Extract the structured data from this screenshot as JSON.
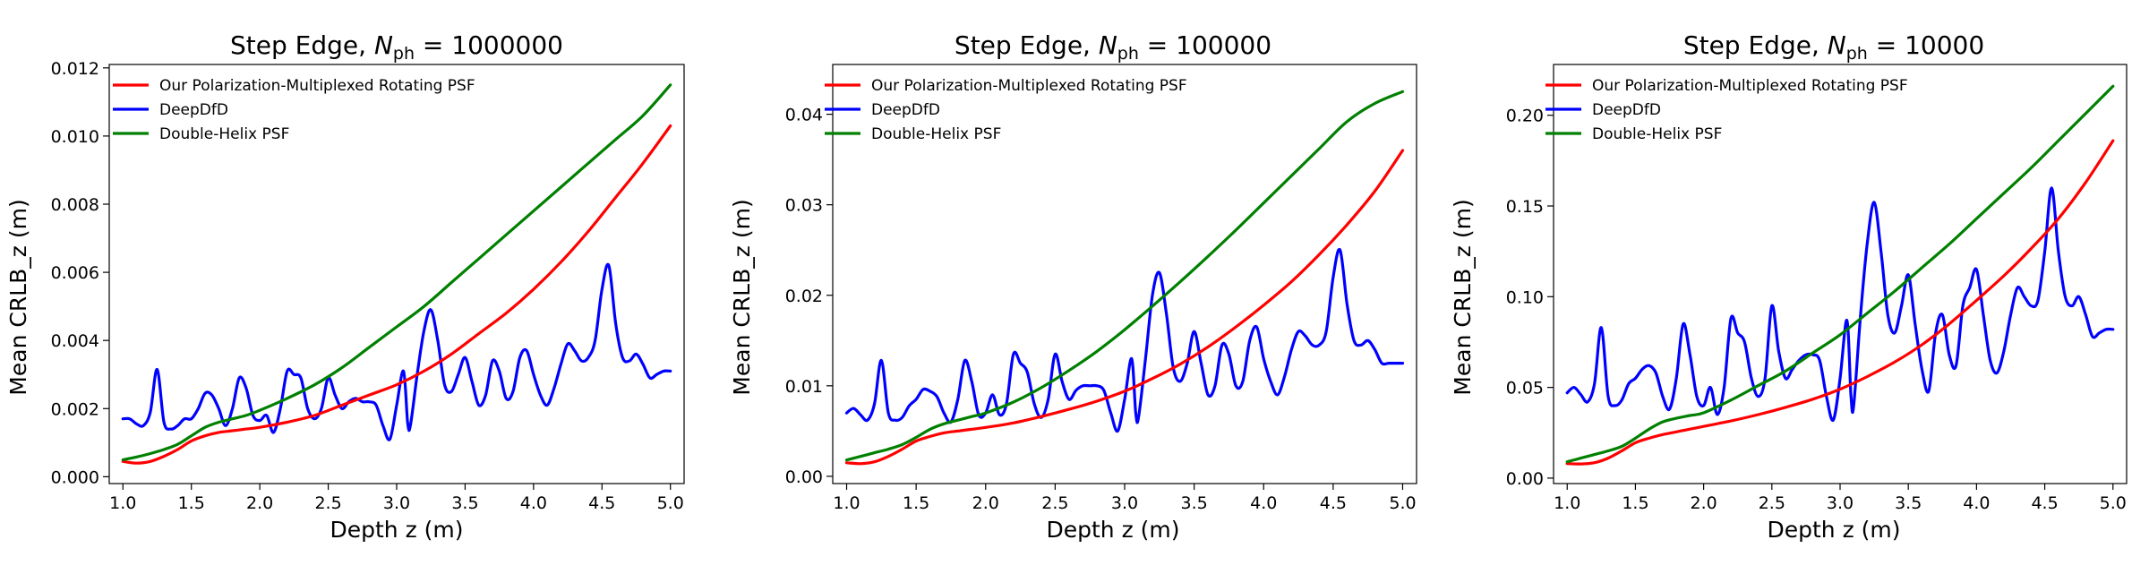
{
  "colors": {
    "red": "#ff0000",
    "blue": "#0000ff",
    "green": "#008000"
  },
  "chart_data": [
    {
      "type": "line",
      "title_main": "Step Edge, ",
      "title_sym": "N",
      "title_sub": "ph",
      "title_value": " = 1000000",
      "xlabel": "Depth z (m)",
      "ylabel": "Mean CRLB_z (m)",
      "xlim": [
        0.9,
        5.1
      ],
      "ylim": [
        -0.0002,
        0.0121
      ],
      "xticks": [
        1.0,
        1.5,
        2.0,
        2.5,
        3.0,
        3.5,
        4.0,
        4.5,
        5.0
      ],
      "xtick_labels": [
        "1.0",
        "1.5",
        "2.0",
        "2.5",
        "3.0",
        "3.5",
        "4.0",
        "4.5",
        "5.0"
      ],
      "yticks": [
        0.0,
        0.002,
        0.004,
        0.006,
        0.008,
        0.01,
        0.012
      ],
      "ytick_labels": [
        "0.000",
        "0.002",
        "0.004",
        "0.006",
        "0.008",
        "0.010",
        "0.012"
      ],
      "legend_position": "upper-left",
      "series": [
        {
          "name": "Our Polarization-Multiplexed Rotating PSF",
          "color": "red",
          "x": [
            1.0,
            1.1,
            1.2,
            1.3,
            1.4,
            1.5,
            1.6,
            1.7,
            1.8,
            1.9,
            2.0,
            2.2,
            2.4,
            2.6,
            2.8,
            3.0,
            3.2,
            3.4,
            3.6,
            3.8,
            4.0,
            4.2,
            4.4,
            4.6,
            4.8,
            5.0
          ],
          "y": [
            0.00045,
            0.0004,
            0.00045,
            0.0006,
            0.0008,
            0.00105,
            0.0012,
            0.0013,
            0.00135,
            0.0014,
            0.00145,
            0.0016,
            0.0018,
            0.0021,
            0.0024,
            0.0027,
            0.0031,
            0.0036,
            0.0042,
            0.0048,
            0.0055,
            0.0063,
            0.0072,
            0.0082,
            0.0092,
            0.0103
          ]
        },
        {
          "name": "DeepDfD",
          "color": "blue",
          "x": [
            1.0,
            1.05,
            1.1,
            1.15,
            1.2,
            1.25,
            1.3,
            1.35,
            1.4,
            1.45,
            1.5,
            1.55,
            1.6,
            1.65,
            1.7,
            1.75,
            1.8,
            1.85,
            1.9,
            1.95,
            2.0,
            2.05,
            2.1,
            2.15,
            2.2,
            2.25,
            2.3,
            2.35,
            2.4,
            2.45,
            2.5,
            2.55,
            2.6,
            2.65,
            2.7,
            2.75,
            2.8,
            2.85,
            2.9,
            2.95,
            3.0,
            3.05,
            3.08,
            3.1,
            3.15,
            3.2,
            3.25,
            3.3,
            3.35,
            3.4,
            3.45,
            3.5,
            3.55,
            3.6,
            3.65,
            3.7,
            3.75,
            3.8,
            3.85,
            3.9,
            3.95,
            4.0,
            4.05,
            4.1,
            4.15,
            4.2,
            4.25,
            4.3,
            4.35,
            4.4,
            4.45,
            4.5,
            4.55,
            4.6,
            4.65,
            4.7,
            4.75,
            4.8,
            4.85,
            4.9,
            4.95,
            5.0
          ],
          "y": [
            0.0017,
            0.0017,
            0.00155,
            0.0015,
            0.0019,
            0.00315,
            0.0016,
            0.0014,
            0.0015,
            0.0017,
            0.0017,
            0.002,
            0.00245,
            0.0024,
            0.002,
            0.0015,
            0.002,
            0.0029,
            0.0026,
            0.0018,
            0.00165,
            0.0018,
            0.0013,
            0.002,
            0.0031,
            0.003,
            0.0029,
            0.002,
            0.0017,
            0.002,
            0.0029,
            0.0024,
            0.002,
            0.0022,
            0.0023,
            0.0022,
            0.0022,
            0.0021,
            0.0015,
            0.0011,
            0.0021,
            0.0031,
            0.0016,
            0.0015,
            0.003,
            0.0043,
            0.0049,
            0.004,
            0.0027,
            0.0025,
            0.003,
            0.0035,
            0.0028,
            0.0021,
            0.0024,
            0.0034,
            0.0031,
            0.0023,
            0.0025,
            0.0035,
            0.0037,
            0.003,
            0.0024,
            0.0021,
            0.0026,
            0.0033,
            0.0039,
            0.0037,
            0.0034,
            0.0035,
            0.004,
            0.0055,
            0.0062,
            0.0045,
            0.0035,
            0.0034,
            0.0036,
            0.0033,
            0.0029,
            0.003,
            0.0031,
            0.0031
          ]
        },
        {
          "name": "Double-Helix PSF",
          "color": "green",
          "x": [
            1.0,
            1.1,
            1.2,
            1.3,
            1.4,
            1.5,
            1.6,
            1.7,
            1.8,
            1.9,
            2.0,
            2.2,
            2.4,
            2.6,
            2.8,
            3.0,
            3.2,
            3.4,
            3.6,
            3.8,
            4.0,
            4.2,
            4.4,
            4.6,
            4.8,
            5.0
          ],
          "y": [
            0.0005,
            0.00058,
            0.00068,
            0.0008,
            0.00095,
            0.0012,
            0.00145,
            0.0016,
            0.0017,
            0.0018,
            0.00195,
            0.0023,
            0.0027,
            0.0032,
            0.0038,
            0.0044,
            0.005,
            0.0057,
            0.0064,
            0.0071,
            0.0078,
            0.0085,
            0.0092,
            0.0099,
            0.0106,
            0.0115
          ]
        }
      ]
    },
    {
      "type": "line",
      "title_main": "Step Edge, ",
      "title_sym": "N",
      "title_sub": "ph",
      "title_value": " = 100000",
      "xlabel": "Depth z (m)",
      "ylabel": "Mean CRLB_z (m)",
      "xlim": [
        0.9,
        5.1
      ],
      "ylim": [
        -0.0008,
        0.0455
      ],
      "xticks": [
        1.0,
        1.5,
        2.0,
        2.5,
        3.0,
        3.5,
        4.0,
        4.5,
        5.0
      ],
      "xtick_labels": [
        "1.0",
        "1.5",
        "2.0",
        "2.5",
        "3.0",
        "3.5",
        "4.0",
        "4.5",
        "5.0"
      ],
      "yticks": [
        0.0,
        0.01,
        0.02,
        0.03,
        0.04
      ],
      "ytick_labels": [
        "0.00",
        "0.01",
        "0.02",
        "0.03",
        "0.04"
      ],
      "legend_position": "upper-left",
      "series": [
        {
          "name": "Our Polarization-Multiplexed Rotating PSF",
          "color": "red",
          "x": [
            1.0,
            1.1,
            1.2,
            1.3,
            1.4,
            1.5,
            1.6,
            1.7,
            1.8,
            1.9,
            2.0,
            2.2,
            2.4,
            2.6,
            2.8,
            3.0,
            3.2,
            3.4,
            3.6,
            3.8,
            4.0,
            4.2,
            4.4,
            4.6,
            4.8,
            5.0
          ],
          "y": [
            0.0015,
            0.0014,
            0.0016,
            0.0022,
            0.003,
            0.0039,
            0.0044,
            0.0048,
            0.005,
            0.0052,
            0.0054,
            0.0059,
            0.0066,
            0.0074,
            0.0083,
            0.0094,
            0.0108,
            0.0124,
            0.0143,
            0.0165,
            0.0189,
            0.0215,
            0.0245,
            0.0278,
            0.0315,
            0.036
          ]
        },
        {
          "name": "DeepDfD",
          "color": "blue",
          "x": [
            1.0,
            1.05,
            1.1,
            1.15,
            1.2,
            1.25,
            1.3,
            1.35,
            1.4,
            1.45,
            1.5,
            1.55,
            1.6,
            1.65,
            1.7,
            1.75,
            1.8,
            1.85,
            1.9,
            1.95,
            2.0,
            2.05,
            2.1,
            2.15,
            2.2,
            2.25,
            2.3,
            2.35,
            2.4,
            2.45,
            2.5,
            2.55,
            2.6,
            2.65,
            2.7,
            2.75,
            2.8,
            2.85,
            2.9,
            2.95,
            3.0,
            3.05,
            3.08,
            3.1,
            3.15,
            3.2,
            3.25,
            3.3,
            3.35,
            3.4,
            3.45,
            3.5,
            3.55,
            3.6,
            3.65,
            3.7,
            3.75,
            3.8,
            3.85,
            3.9,
            3.95,
            4.0,
            4.05,
            4.1,
            4.15,
            4.2,
            4.25,
            4.3,
            4.35,
            4.4,
            4.45,
            4.5,
            4.55,
            4.6,
            4.65,
            4.7,
            4.75,
            4.8,
            4.85,
            4.9,
            4.95,
            5.0
          ],
          "y": [
            0.007,
            0.0075,
            0.0068,
            0.0062,
            0.008,
            0.0128,
            0.007,
            0.0062,
            0.0065,
            0.0078,
            0.0085,
            0.0096,
            0.0094,
            0.0088,
            0.007,
            0.006,
            0.0085,
            0.0128,
            0.0105,
            0.0068,
            0.007,
            0.009,
            0.0068,
            0.008,
            0.0135,
            0.0125,
            0.0115,
            0.008,
            0.0065,
            0.0085,
            0.0135,
            0.0105,
            0.0085,
            0.0095,
            0.01,
            0.01,
            0.01,
            0.0095,
            0.007,
            0.005,
            0.0085,
            0.013,
            0.007,
            0.0065,
            0.013,
            0.02,
            0.0225,
            0.018,
            0.012,
            0.0105,
            0.0125,
            0.016,
            0.0125,
            0.009,
            0.01,
            0.0145,
            0.0135,
            0.01,
            0.0105,
            0.015,
            0.0165,
            0.013,
            0.0105,
            0.009,
            0.011,
            0.014,
            0.016,
            0.0155,
            0.0145,
            0.0145,
            0.016,
            0.022,
            0.025,
            0.019,
            0.015,
            0.0145,
            0.015,
            0.014,
            0.0125,
            0.0125,
            0.0125,
            0.0125
          ]
        },
        {
          "name": "Double-Helix PSF",
          "color": "green",
          "x": [
            1.0,
            1.1,
            1.2,
            1.3,
            1.4,
            1.5,
            1.6,
            1.7,
            1.8,
            1.9,
            2.0,
            2.2,
            2.4,
            2.6,
            2.8,
            3.0,
            3.2,
            3.4,
            3.6,
            3.8,
            4.0,
            4.2,
            4.4,
            4.6,
            4.8,
            5.0
          ],
          "y": [
            0.0018,
            0.0022,
            0.0026,
            0.003,
            0.0035,
            0.0043,
            0.0052,
            0.0058,
            0.0062,
            0.0066,
            0.007,
            0.0082,
            0.0098,
            0.0117,
            0.0138,
            0.0162,
            0.0188,
            0.0215,
            0.0243,
            0.0272,
            0.0302,
            0.0332,
            0.0362,
            0.0392,
            0.0412,
            0.0425
          ]
        }
      ]
    },
    {
      "type": "line",
      "title_main": "Step Edge, ",
      "title_sym": "N",
      "title_sub": "ph",
      "title_value": " = 10000",
      "xlabel": "Depth z (m)",
      "ylabel": "Mean CRLB_z (m)",
      "xlim": [
        0.9,
        5.1
      ],
      "ylim": [
        -0.003,
        0.228
      ],
      "xticks": [
        1.0,
        1.5,
        2.0,
        2.5,
        3.0,
        3.5,
        4.0,
        4.5,
        5.0
      ],
      "xtick_labels": [
        "1.0",
        "1.5",
        "2.0",
        "2.5",
        "3.0",
        "3.5",
        "4.0",
        "4.5",
        "5.0"
      ],
      "yticks": [
        0.0,
        0.05,
        0.1,
        0.15,
        0.2
      ],
      "ytick_labels": [
        "0.00",
        "0.05",
        "0.10",
        "0.15",
        "0.20"
      ],
      "legend_position": "upper-left",
      "series": [
        {
          "name": "Our Polarization-Multiplexed Rotating PSF",
          "color": "red",
          "x": [
            1.0,
            1.1,
            1.2,
            1.3,
            1.4,
            1.5,
            1.6,
            1.7,
            1.8,
            1.9,
            2.0,
            2.2,
            2.4,
            2.6,
            2.8,
            3.0,
            3.2,
            3.4,
            3.6,
            3.8,
            4.0,
            4.2,
            4.4,
            4.6,
            4.8,
            5.0
          ],
          "y": [
            0.008,
            0.0078,
            0.0085,
            0.011,
            0.015,
            0.0195,
            0.022,
            0.024,
            0.0255,
            0.027,
            0.0285,
            0.0315,
            0.035,
            0.039,
            0.0435,
            0.049,
            0.056,
            0.064,
            0.0735,
            0.085,
            0.098,
            0.1115,
            0.1265,
            0.143,
            0.163,
            0.186
          ]
        },
        {
          "name": "DeepDfD",
          "color": "blue",
          "x": [
            1.0,
            1.05,
            1.1,
            1.15,
            1.2,
            1.25,
            1.3,
            1.35,
            1.4,
            1.45,
            1.5,
            1.55,
            1.6,
            1.65,
            1.7,
            1.75,
            1.8,
            1.85,
            1.9,
            1.95,
            2.0,
            2.05,
            2.1,
            2.15,
            2.2,
            2.25,
            2.3,
            2.35,
            2.4,
            2.45,
            2.5,
            2.55,
            2.6,
            2.65,
            2.7,
            2.75,
            2.8,
            2.85,
            2.9,
            2.95,
            3.0,
            3.05,
            3.08,
            3.1,
            3.15,
            3.2,
            3.25,
            3.3,
            3.35,
            3.4,
            3.45,
            3.5,
            3.55,
            3.6,
            3.65,
            3.7,
            3.75,
            3.8,
            3.85,
            3.9,
            3.95,
            4.0,
            4.05,
            4.1,
            4.15,
            4.2,
            4.25,
            4.3,
            4.35,
            4.4,
            4.45,
            4.5,
            4.55,
            4.6,
            4.65,
            4.7,
            4.75,
            4.8,
            4.85,
            4.9,
            4.95,
            5.0
          ],
          "y": [
            0.047,
            0.05,
            0.046,
            0.042,
            0.052,
            0.083,
            0.045,
            0.04,
            0.043,
            0.052,
            0.055,
            0.06,
            0.062,
            0.058,
            0.045,
            0.038,
            0.055,
            0.085,
            0.068,
            0.045,
            0.04,
            0.05,
            0.035,
            0.05,
            0.088,
            0.08,
            0.075,
            0.055,
            0.045,
            0.055,
            0.095,
            0.07,
            0.055,
            0.06,
            0.065,
            0.068,
            0.068,
            0.065,
            0.045,
            0.032,
            0.055,
            0.087,
            0.045,
            0.04,
            0.09,
            0.13,
            0.152,
            0.125,
            0.09,
            0.08,
            0.095,
            0.112,
            0.085,
            0.06,
            0.048,
            0.08,
            0.09,
            0.068,
            0.062,
            0.095,
            0.105,
            0.115,
            0.09,
            0.065,
            0.058,
            0.07,
            0.09,
            0.105,
            0.1,
            0.095,
            0.098,
            0.125,
            0.16,
            0.125,
            0.1,
            0.095,
            0.1,
            0.09,
            0.078,
            0.08,
            0.082,
            0.082
          ]
        },
        {
          "name": "Double-Helix PSF",
          "color": "green",
          "x": [
            1.0,
            1.1,
            1.2,
            1.3,
            1.4,
            1.5,
            1.6,
            1.7,
            1.8,
            1.9,
            2.0,
            2.2,
            2.4,
            2.6,
            2.8,
            3.0,
            3.2,
            3.4,
            3.6,
            3.8,
            4.0,
            4.2,
            4.4,
            4.6,
            4.8,
            5.0
          ],
          "y": [
            0.009,
            0.011,
            0.013,
            0.015,
            0.0175,
            0.022,
            0.027,
            0.031,
            0.033,
            0.0345,
            0.036,
            0.043,
            0.051,
            0.059,
            0.069,
            0.079,
            0.091,
            0.103,
            0.116,
            0.129,
            0.143,
            0.157,
            0.171,
            0.186,
            0.201,
            0.216
          ]
        }
      ]
    }
  ]
}
